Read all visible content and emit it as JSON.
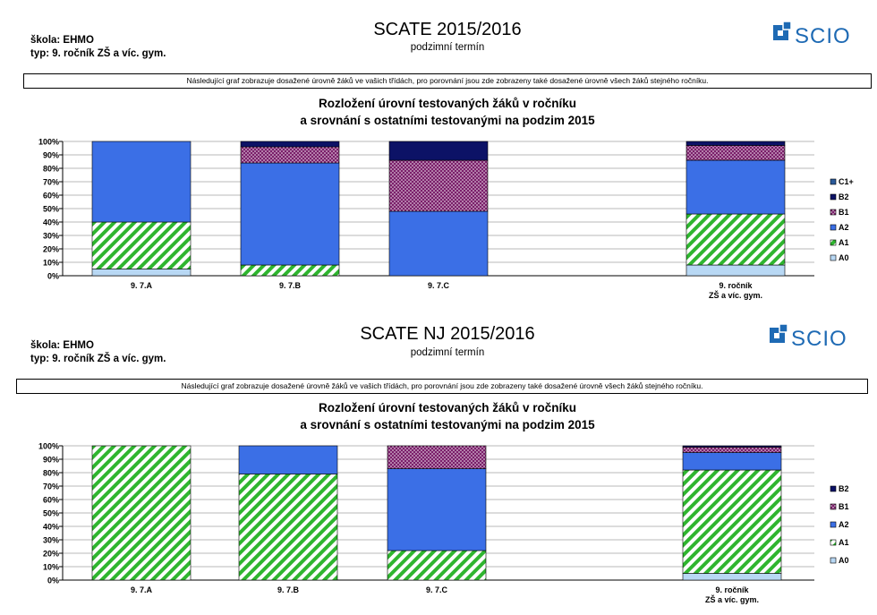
{
  "reports": [
    {
      "school": "škola: EHMO",
      "type": "typ: 9. ročník ZŠ a víc. gym.",
      "title": "SCATE 2015/2016",
      "subtitle": "podzimní termín",
      "logo_text": "SCIO",
      "note": "Následující graf zobrazuje dosažené úrovně žáků ve vašich třídách, pro porovnání jsou zde zobrazeny také dosažené úrovně všech žáků stejného ročníku.",
      "chart_title_line1": "Rozložení úrovní testovaných žáků v ročníku",
      "chart_title_line2": "a srovnání s ostatními testovanými na podzim 2015"
    },
    {
      "school": "škola: EHMO",
      "type": "typ: 9. ročník ZŠ a víc. gym.",
      "title": "SCATE NJ 2015/2016",
      "subtitle": "podzimní termín",
      "logo_text": "SCIO",
      "note": "Následující graf zobrazuje dosažené úrovně žáků ve vašich třídách, pro porovnání jsou zde zobrazeny také dosažené úrovně všech žáků stejného ročníku.",
      "chart_title_line1": "Rozložení úrovní testovaných žáků v ročníku",
      "chart_title_line2": "a srovnání s ostatními testovanými na podzim 2015"
    }
  ],
  "colors": {
    "A0": "#b8d8f4",
    "A1_stripe": "#2fb52f",
    "A2": "#3b6fe6",
    "B1_base": "#7a1f6a",
    "B1_dot": "#ffffff",
    "B2": "#0c1266",
    "C1+": "#2a5a9a",
    "grid": "#b8b8b8"
  },
  "chart_data": [
    {
      "type": "bar",
      "stacked": true,
      "categories": [
        "9. 7.A",
        "9. 7.B",
        "9. 7.C",
        "",
        "9. ročník\nZŠ a víc. gym."
      ],
      "yticks": [
        "0%",
        "10%",
        "20%",
        "30%",
        "40%",
        "50%",
        "60%",
        "70%",
        "80%",
        "90%",
        "100%"
      ],
      "ylim": [
        0,
        100
      ],
      "grid": true,
      "legend_position": "right",
      "legend": [
        "C1+",
        "B2",
        "B1",
        "A2",
        "A1",
        "A0"
      ],
      "series": [
        {
          "name": "A0",
          "values": [
            5,
            0,
            0,
            null,
            8
          ]
        },
        {
          "name": "A1",
          "values": [
            35,
            8,
            0,
            null,
            38
          ]
        },
        {
          "name": "A2",
          "values": [
            60,
            76,
            48,
            null,
            40
          ]
        },
        {
          "name": "B1",
          "values": [
            0,
            12,
            38,
            null,
            11
          ]
        },
        {
          "name": "B2",
          "values": [
            0,
            4,
            14,
            null,
            3
          ]
        },
        {
          "name": "C1+",
          "values": [
            0,
            0,
            0,
            null,
            0
          ]
        }
      ]
    },
    {
      "type": "bar",
      "stacked": true,
      "categories": [
        "9. 7.A",
        "9. 7.B",
        "9. 7.C",
        "",
        "9. ročník\nZŠ a víc. gym."
      ],
      "yticks": [
        "0%",
        "10%",
        "20%",
        "30%",
        "40%",
        "50%",
        "60%",
        "70%",
        "80%",
        "90%",
        "100%"
      ],
      "ylim": [
        0,
        100
      ],
      "grid": true,
      "legend_position": "right",
      "legend": [
        "B2",
        "B1",
        "A2",
        "A1",
        "A0"
      ],
      "series": [
        {
          "name": "A0",
          "values": [
            0,
            0,
            0,
            null,
            5
          ]
        },
        {
          "name": "A1",
          "values": [
            100,
            79,
            22,
            null,
            77
          ]
        },
        {
          "name": "A2",
          "values": [
            0,
            21,
            61,
            null,
            13
          ]
        },
        {
          "name": "B1",
          "values": [
            0,
            0,
            17,
            null,
            4
          ]
        },
        {
          "name": "B2",
          "values": [
            0,
            0,
            0,
            null,
            1
          ]
        }
      ]
    }
  ]
}
